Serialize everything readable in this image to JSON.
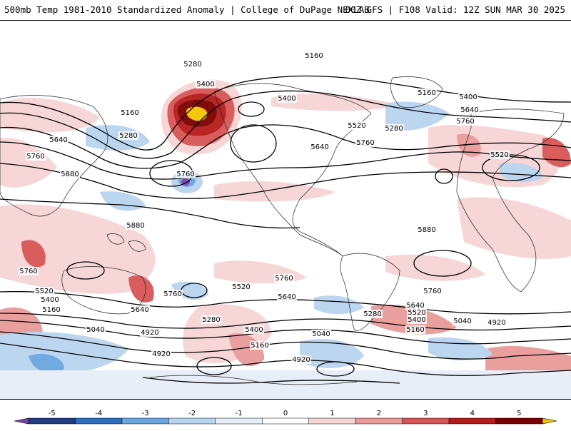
{
  "header": {
    "title": "500mb Temp 1981-2010 Standardized Anomaly | College of DuPage NEXLAB",
    "run_info": "00Z GFS | F108 Valid: 12Z SUN MAR 30 2025"
  },
  "contour_labels": [
    {
      "text": "5160",
      "pos": "top-center"
    },
    {
      "text": "5280",
      "pos": "north-pacific"
    },
    {
      "text": "5400",
      "pos": "alaska"
    },
    {
      "text": "5400",
      "pos": "gulf-alaska"
    },
    {
      "text": "5160",
      "pos": "north-asia"
    },
    {
      "text": "5280",
      "pos": "east-asia"
    },
    {
      "text": "5640",
      "pos": "west-pacific"
    },
    {
      "text": "5760",
      "pos": "subtropical-west"
    },
    {
      "text": "5880",
      "pos": "tropical-west"
    },
    {
      "text": "5760",
      "pos": "central-pacific"
    },
    {
      "text": "5520",
      "pos": "great-lakes"
    },
    {
      "text": "5280",
      "pos": "north-atlantic"
    },
    {
      "text": "5640",
      "pos": "east-us"
    },
    {
      "text": "5760",
      "pos": "atlantic"
    },
    {
      "text": "5160",
      "pos": "greenland"
    },
    {
      "text": "5400",
      "pos": "europe-north"
    },
    {
      "text": "5640",
      "pos": "europe"
    },
    {
      "text": "5760",
      "pos": "mediterranean"
    },
    {
      "text": "5520",
      "pos": "central-asia"
    },
    {
      "text": "5880",
      "pos": "maritime-continent"
    },
    {
      "text": "5880",
      "pos": "south-atlantic"
    },
    {
      "text": "5760",
      "pos": "australia-west"
    },
    {
      "text": "5760",
      "pos": "southwest-pacific"
    },
    {
      "text": "5520",
      "pos": "south-west"
    },
    {
      "text": "5400",
      "pos": "south-west-2"
    },
    {
      "text": "5160",
      "pos": "south-west-3"
    },
    {
      "text": "5520",
      "pos": "south-pacific"
    },
    {
      "text": "5640",
      "pos": "south-pacific-2"
    },
    {
      "text": "5760",
      "pos": "south-america-west"
    },
    {
      "text": "5640",
      "pos": "south-pacific-3"
    },
    {
      "text": "5280",
      "pos": "drake"
    },
    {
      "text": "5040",
      "pos": "southern-ocean-west"
    },
    {
      "text": "4920",
      "pos": "southern-ocean-west-2"
    },
    {
      "text": "5400",
      "pos": "southern-ocean-mid"
    },
    {
      "text": "5160",
      "pos": "southern-ocean-mid-2"
    },
    {
      "text": "5040",
      "pos": "southern-ocean-center"
    },
    {
      "text": "4920",
      "pos": "antarctica-west"
    },
    {
      "text": "4920",
      "pos": "antarctica-mid"
    },
    {
      "text": "5760",
      "pos": "south-africa-west"
    },
    {
      "text": "5640",
      "pos": "south-africa"
    },
    {
      "text": "5520",
      "pos": "south-africa-2"
    },
    {
      "text": "5400",
      "pos": "south-africa-3"
    },
    {
      "text": "5160",
      "pos": "south-africa-4"
    },
    {
      "text": "5040",
      "pos": "southern-indian"
    },
    {
      "text": "4920",
      "pos": "southern-indian-2"
    },
    {
      "text": "5280",
      "pos": "southern-ocean-west-3"
    }
  ],
  "colorbar": {
    "ticks": [
      "-5",
      "-4",
      "-3",
      "-2",
      "-1",
      "0",
      "1",
      "2",
      "3",
      "4",
      "5"
    ],
    "colors": [
      "#7a3fb0",
      "#1f3d80",
      "#2f6fc0",
      "#6aa6e0",
      "#b9d4f0",
      "#e6eef8",
      "#ffffff",
      "#f6d4d4",
      "#e99a9a",
      "#d95555",
      "#b51b1b",
      "#7a0000",
      "#f5c400"
    ]
  }
}
